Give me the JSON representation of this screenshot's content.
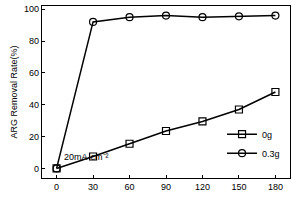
{
  "chart_data": {
    "type": "line",
    "y_label": "ARG Removal Rate(%)",
    "annotation": "20mA·cm⁻²",
    "x": [
      0,
      30,
      60,
      90,
      120,
      150,
      180
    ],
    "series": [
      {
        "name": "0g",
        "color": "#000000",
        "marker": "square-open",
        "values": [
          0,
          7.5,
          15.5,
          23.5,
          29.5,
          37,
          48
        ]
      },
      {
        "name": "0.3g",
        "color": "#000000",
        "marker": "circle-open",
        "values": [
          0,
          92,
          95,
          96,
          95,
          95.5,
          96
        ]
      }
    ],
    "xlim": [
      -12,
      192
    ],
    "xticks": [
      0,
      30,
      60,
      90,
      120,
      150,
      180
    ],
    "ylim": [
      -6,
      102
    ],
    "yticks": [
      0,
      20,
      40,
      60,
      80,
      100
    ],
    "grid": false,
    "legend": "bottom right"
  }
}
